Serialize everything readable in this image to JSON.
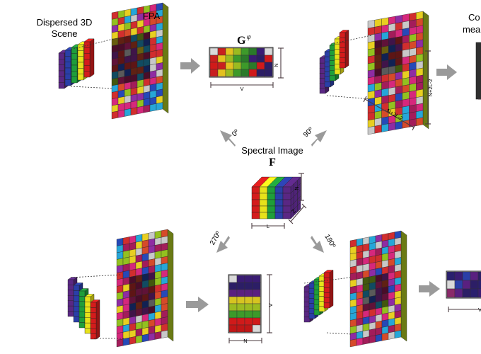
{
  "labels": {
    "dispersed_scene_line1": "Dispersed 3D",
    "dispersed_scene_line2": "Scene",
    "fpa": "FPA",
    "compressive_line1": "Co",
    "compressive_line2": "mea",
    "spectral_image": "Spectral Image",
    "F": "F",
    "G": "G",
    "G_sup": "φ"
  },
  "angles": {
    "a0": "0º",
    "a90": "90º",
    "a180": "180º",
    "a270": "270º"
  },
  "dims": {
    "N": "N",
    "V": "V",
    "L": "L",
    "Z": "Z",
    "N2L2": "N+2L-2"
  },
  "colors": {
    "fpa": [
      "#d6287c",
      "#e8cf21",
      "#26a6d8",
      "#a31c5a",
      "#d12e2e",
      "#93c11f",
      "#8f2ca3",
      "#c8c8c8",
      "#2649b8",
      "#d64a2a"
    ],
    "bands": [
      "#5a2784",
      "#2a3fa8",
      "#1f9e3a",
      "#e7e21a",
      "#d41c1c"
    ],
    "dim": "#4b3b3f",
    "arrow": "#9a9a9a"
  }
}
